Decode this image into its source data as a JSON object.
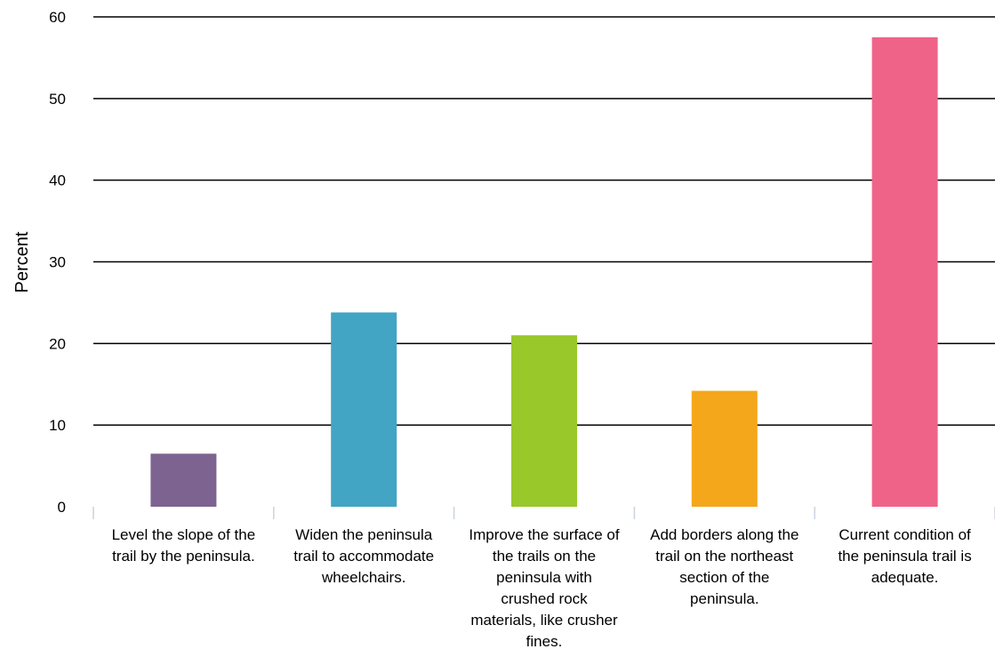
{
  "chart_data": {
    "type": "bar",
    "title": "",
    "xlabel": "",
    "ylabel": "Percent",
    "ylim": [
      0,
      60
    ],
    "yticks": [
      0,
      10,
      20,
      30,
      40,
      50,
      60
    ],
    "grid": true,
    "legend": "none",
    "categories": [
      "Level the slope of the trail by the peninsula.",
      "Widen the peninsula trail to accommodate wheelchairs.",
      "Improve the surface of the trails on the peninsula with crushed rock materials, like crusher fines.",
      "Add borders along the trail on the northeast section of the peninsula.",
      "Current condition of the peninsula trail is adequate."
    ],
    "values": [
      6.5,
      23.8,
      21.0,
      14.2,
      57.5
    ],
    "colors": [
      "#7d6490",
      "#41a5c3",
      "#98c829",
      "#f4a71b",
      "#f06388"
    ]
  }
}
